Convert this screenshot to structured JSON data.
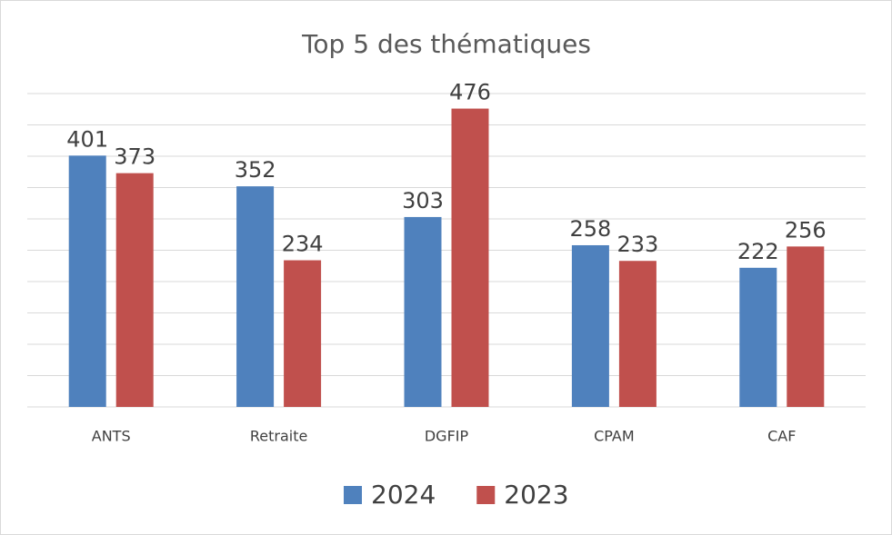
{
  "chart_data": {
    "type": "bar",
    "title": "Top 5 des thématiques",
    "categories": [
      "ANTS",
      "Retraite",
      "DGFIP",
      "CPAM",
      "CAF"
    ],
    "series": [
      {
        "name": "2024",
        "color": "#4f81bd",
        "values": [
          401,
          352,
          303,
          258,
          222
        ]
      },
      {
        "name": "2023",
        "color": "#c0504d",
        "values": [
          373,
          234,
          476,
          233,
          256
        ]
      }
    ],
    "ylim": [
      0,
      500
    ],
    "yticks": [
      0,
      50,
      100,
      150,
      200,
      250,
      300,
      350,
      400,
      450,
      500
    ],
    "grid": true,
    "legend": "bottom"
  }
}
